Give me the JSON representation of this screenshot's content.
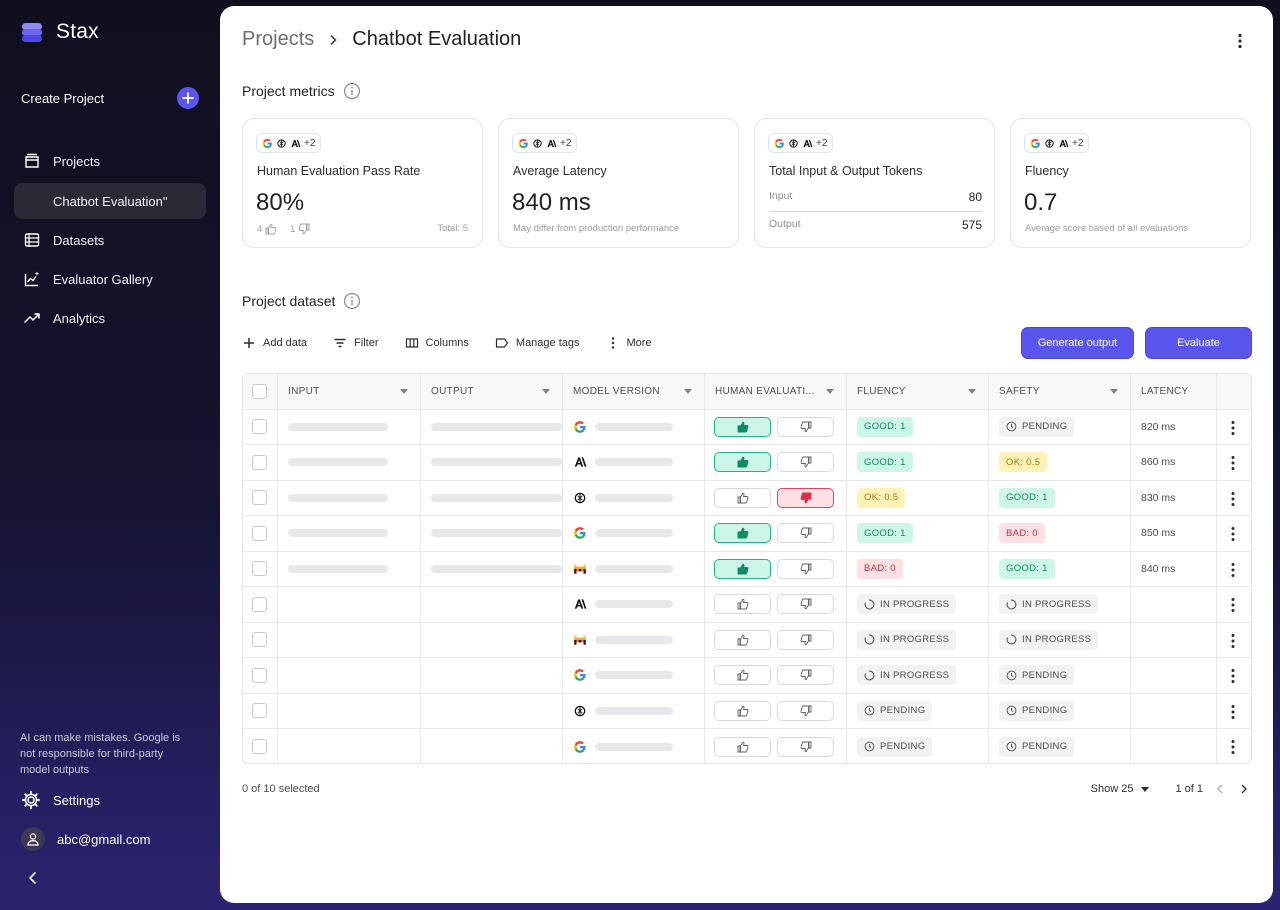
{
  "app": {
    "name": "Stax"
  },
  "sidebar": {
    "create_label": "Create Project",
    "items": [
      {
        "label": "Projects"
      },
      {
        "label": "Chatbot Evaluation\""
      },
      {
        "label": "Datasets"
      },
      {
        "label": "Evaluator Gallery"
      },
      {
        "label": "Analytics"
      }
    ],
    "disclaimer": "AI can make mistakes. Google is not responsible for third-party model outputs",
    "settings_label": "Settings",
    "account": "abc@gmail.com"
  },
  "header": {
    "parent": "Projects",
    "current": "Chatbot Evaluation"
  },
  "metrics": {
    "title": "Project metrics",
    "chip_more": "+2",
    "cards": [
      {
        "title": "Human Evaluation Pass Rate",
        "value": "80%",
        "up_count": "4",
        "down_count": "1",
        "total": "Total: 5"
      },
      {
        "title": "Average Latency",
        "value": "840 ms",
        "note": "May differ from production performance"
      },
      {
        "title": "Total Input & Output Tokens",
        "input_label": "Input",
        "input_value": "80",
        "output_label": "Output",
        "output_value": "575"
      },
      {
        "title": "Fluency",
        "value": "0.7",
        "note": "Average score based of all evaluations"
      }
    ]
  },
  "dataset": {
    "title": "Project dataset",
    "toolbar": {
      "add": "Add data",
      "filter": "Filter",
      "columns": "Columns",
      "tags": "Manage tags",
      "more": "More"
    },
    "generate_label": "Generate output",
    "evaluate_label": "Evaluate",
    "columns": [
      "INPUT",
      "OUTPUT",
      "MODEL VERSION",
      "HUMAN EVALUATI...",
      "FLUENCY",
      "SAFETY",
      "LATENCY"
    ],
    "rows": [
      {
        "model": "google",
        "io": true,
        "he": "up",
        "fluency": {
          "text": "GOOD: 1",
          "kind": "good"
        },
        "safety": {
          "text": "PENDING",
          "kind": "pending"
        },
        "latency": "820 ms"
      },
      {
        "model": "anthropic",
        "io": true,
        "he": "up",
        "fluency": {
          "text": "GOOD: 1",
          "kind": "good"
        },
        "safety": {
          "text": "OK: 0.5",
          "kind": "ok"
        },
        "latency": "860 ms"
      },
      {
        "model": "openai",
        "io": true,
        "he": "down",
        "fluency": {
          "text": "OK: 0.5",
          "kind": "ok"
        },
        "safety": {
          "text": "GOOD: 1",
          "kind": "good"
        },
        "latency": "830 ms"
      },
      {
        "model": "google",
        "io": true,
        "he": "up",
        "fluency": {
          "text": "GOOD: 1",
          "kind": "good"
        },
        "safety": {
          "text": "BAD: 0",
          "kind": "bad"
        },
        "latency": "850 ms"
      },
      {
        "model": "mistral",
        "io": true,
        "he": "up",
        "fluency": {
          "text": "BAD: 0",
          "kind": "bad"
        },
        "safety": {
          "text": "GOOD: 1",
          "kind": "good"
        },
        "latency": "840 ms"
      },
      {
        "model": "anthropic",
        "io": false,
        "he": "none",
        "fluency": {
          "text": "IN PROGRESS",
          "kind": "progress"
        },
        "safety": {
          "text": "IN PROGRESS",
          "kind": "progress"
        },
        "latency": ""
      },
      {
        "model": "mistral",
        "io": false,
        "he": "none",
        "fluency": {
          "text": "IN PROGRESS",
          "kind": "progress"
        },
        "safety": {
          "text": "IN PROGRESS",
          "kind": "progress"
        },
        "latency": ""
      },
      {
        "model": "google",
        "io": false,
        "he": "none",
        "fluency": {
          "text": "IN PROGRESS",
          "kind": "progress"
        },
        "safety": {
          "text": "PENDING",
          "kind": "pending"
        },
        "latency": ""
      },
      {
        "model": "openai",
        "io": false,
        "he": "none",
        "fluency": {
          "text": "PENDING",
          "kind": "pending"
        },
        "safety": {
          "text": "PENDING",
          "kind": "pending"
        },
        "latency": ""
      },
      {
        "model": "google",
        "io": false,
        "he": "none",
        "fluency": {
          "text": "PENDING",
          "kind": "pending"
        },
        "safety": {
          "text": "PENDING",
          "kind": "pending"
        },
        "latency": ""
      }
    ],
    "selected_text": "0 of 10 selected",
    "show_label": "Show 25",
    "page_text": "1 of 1"
  },
  "colors": {
    "accent": "#5b55f0",
    "good": "#0e8a64",
    "ok": "#a2790a",
    "bad": "#c03146"
  }
}
